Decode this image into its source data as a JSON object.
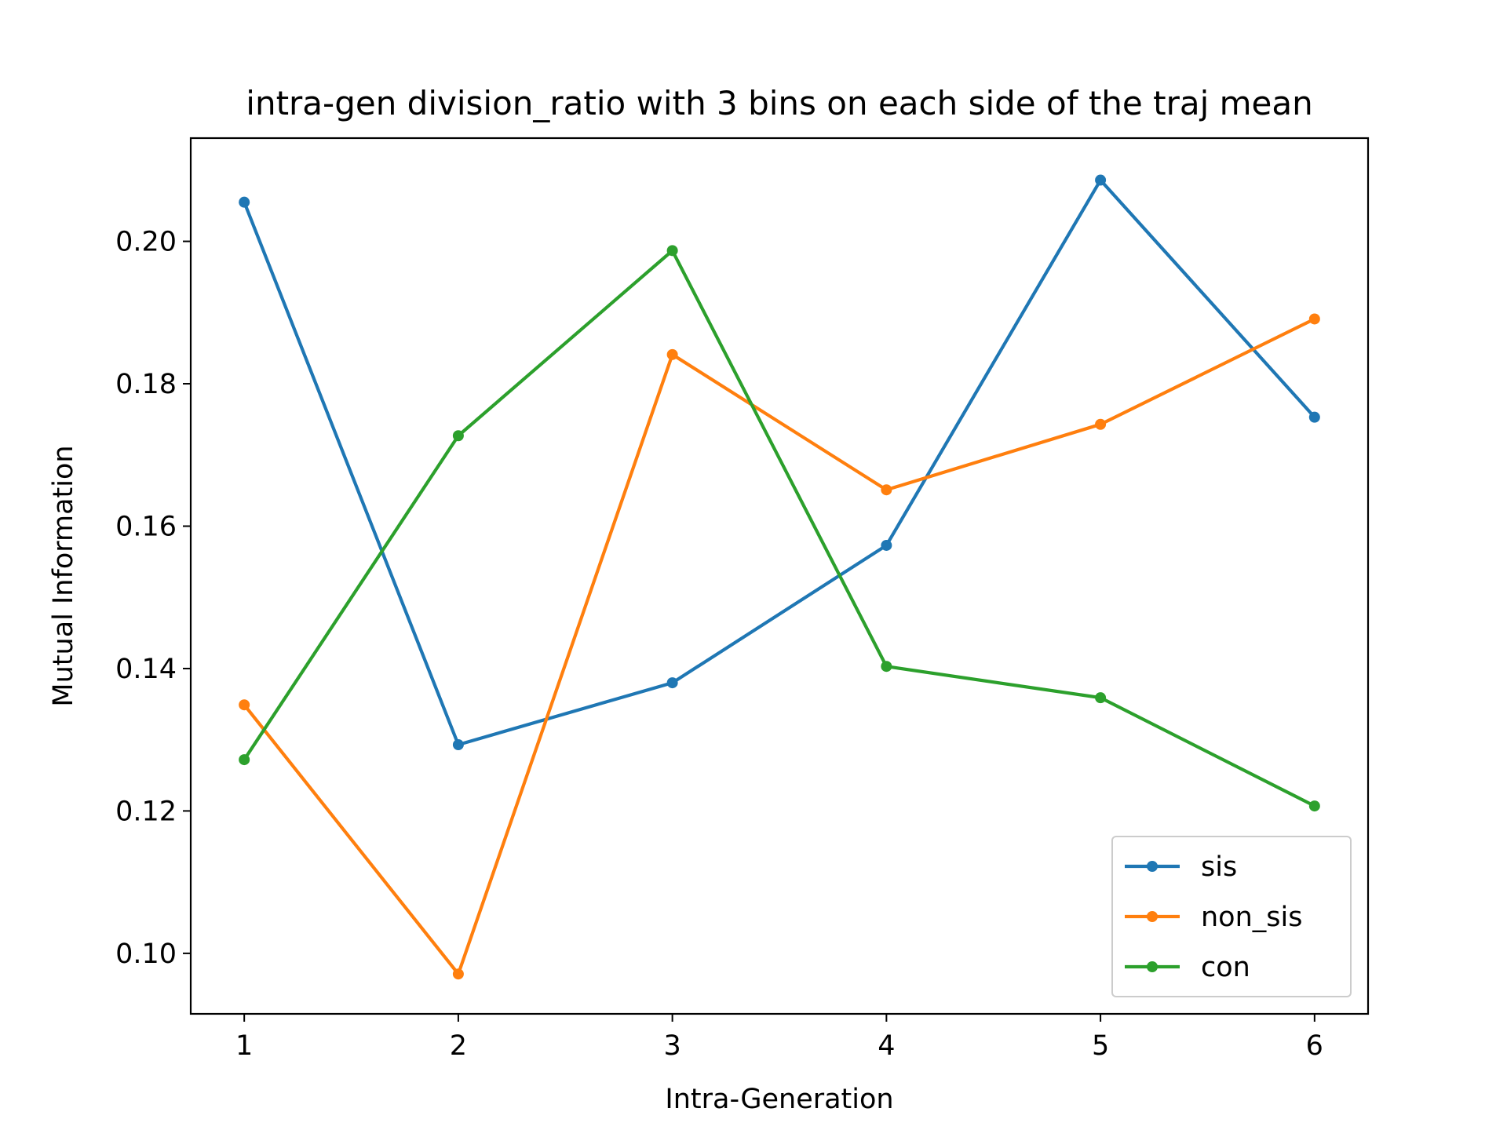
{
  "chart_data": {
    "type": "line",
    "title": "intra-gen division_ratio with 3 bins on each side of the traj mean",
    "xlabel": "Intra-Generation",
    "ylabel": "Mutual Information",
    "x": [
      1,
      2,
      3,
      4,
      5,
      6
    ],
    "xlim": [
      0.75,
      6.25
    ],
    "ylim": [
      0.0915,
      0.2145
    ],
    "xticks": [
      "1",
      "2",
      "3",
      "4",
      "5",
      "6"
    ],
    "yticks": [
      "0.10",
      "0.12",
      "0.14",
      "0.16",
      "0.18",
      "0.20"
    ],
    "grid": false,
    "legend_position": "lower-right",
    "series": [
      {
        "name": "sis",
        "color": "#1f77b4",
        "values": [
          0.2055,
          0.1293,
          0.138,
          0.1573,
          0.2086,
          0.1753
        ]
      },
      {
        "name": "non_sis",
        "color": "#ff7f0e",
        "values": [
          0.1349,
          0.0971,
          0.1841,
          0.1651,
          0.1743,
          0.1891
        ]
      },
      {
        "name": "con",
        "color": "#2ca02c",
        "values": [
          0.1272,
          0.1727,
          0.1987,
          0.1403,
          0.1359,
          0.1207
        ]
      }
    ]
  }
}
